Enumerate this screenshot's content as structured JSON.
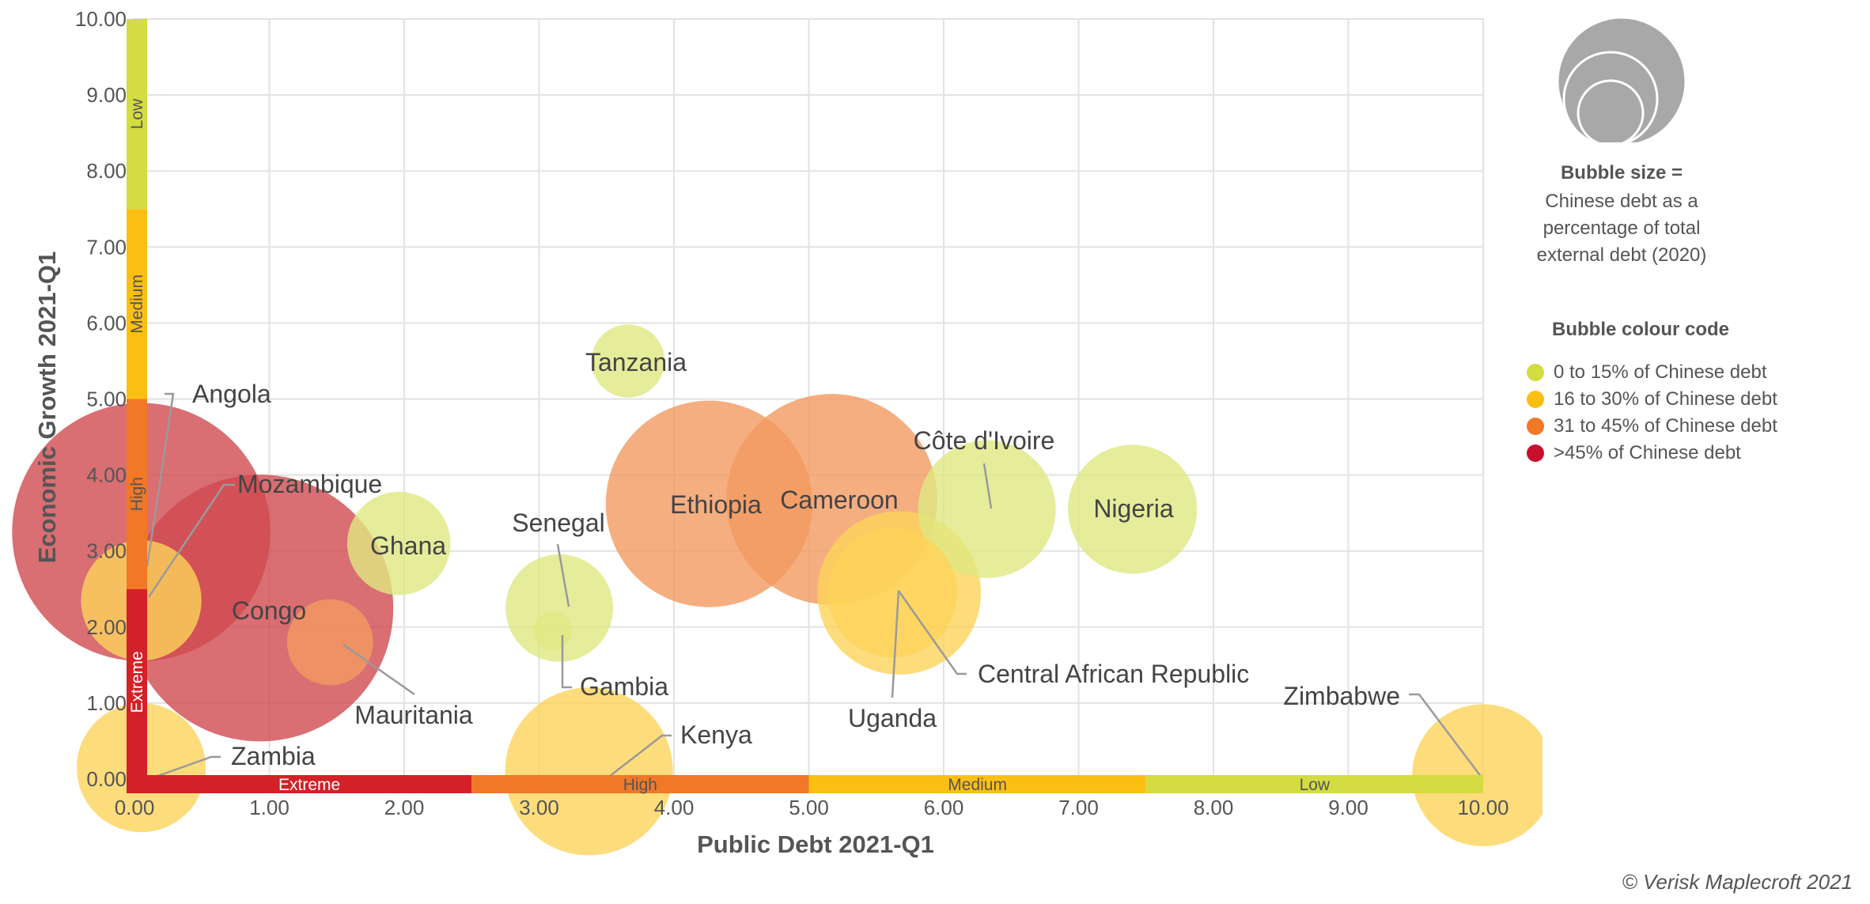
{
  "chart_data": {
    "type": "scatter",
    "subtype": "bubble",
    "xlabel": "Public Debt 2021-Q1",
    "ylabel": "Economic Growth 2021-Q1",
    "xlim": [
      0,
      10
    ],
    "ylim": [
      0,
      10
    ],
    "x_ticks": [
      "0.00",
      "1.00",
      "2.00",
      "3.00",
      "4.00",
      "5.00",
      "6.00",
      "7.00",
      "8.00",
      "9.00",
      "10.00"
    ],
    "y_ticks": [
      "0.00",
      "1.00",
      "2.00",
      "3.00",
      "4.00",
      "5.00",
      "6.00",
      "7.00",
      "8.00",
      "9.00",
      "10.00"
    ],
    "grid": true,
    "x_bands": [
      {
        "label": "Extreme",
        "from": 0,
        "to": 2.5,
        "color": "#d42027"
      },
      {
        "label": "High",
        "from": 2.5,
        "to": 5.0,
        "color": "#f07826"
      },
      {
        "label": "Medium",
        "from": 5.0,
        "to": 7.5,
        "color": "#fbbf13"
      },
      {
        "label": "Low",
        "from": 7.5,
        "to": 10.0,
        "color": "#d3dc41"
      }
    ],
    "y_bands": [
      {
        "label": "Extreme",
        "from": 0,
        "to": 2.5,
        "color": "#d42027"
      },
      {
        "label": "High",
        "from": 2.5,
        "to": 5.0,
        "color": "#f07826"
      },
      {
        "label": "Medium",
        "from": 5.0,
        "to": 7.5,
        "color": "#fbbf13"
      },
      {
        "label": "Low",
        "from": 7.5,
        "to": 10.0,
        "color": "#d3dc41"
      }
    ],
    "points": [
      {
        "name": "Angola",
        "x": 0.05,
        "y": 3.25,
        "size": 60,
        "category": ">45% of Chinese debt"
      },
      {
        "name": "Mozambique",
        "x": 0.05,
        "y": 2.35,
        "size": 28,
        "category": "16 to 30% of Chinese debt"
      },
      {
        "name": "Congo",
        "x": 0.93,
        "y": 2.25,
        "size": 62,
        "category": ">45% of Chinese debt"
      },
      {
        "name": "Ghana",
        "x": 1.96,
        "y": 3.1,
        "size": 24,
        "category": "0 to 15% of Chinese debt"
      },
      {
        "name": "Mauritania",
        "x": 1.45,
        "y": 1.8,
        "size": 20,
        "category": "31 to 45% of Chinese debt"
      },
      {
        "name": "Zambia",
        "x": 0.05,
        "y": 0.15,
        "size": 30,
        "category": "16 to 30% of Chinese debt"
      },
      {
        "name": "Senegal",
        "x": 3.15,
        "y": 2.25,
        "size": 25,
        "category": "0 to 15% of Chinese debt"
      },
      {
        "name": "Gambia",
        "x": 3.1,
        "y": 1.95,
        "size": 9,
        "category": "0 to 15% of Chinese debt"
      },
      {
        "name": "Tanzania",
        "x": 3.66,
        "y": 5.5,
        "size": 17,
        "category": "0 to 15% of Chinese debt"
      },
      {
        "name": "Kenya",
        "x": 3.37,
        "y": 0.1,
        "size": 39,
        "category": "16 to 30% of Chinese debt"
      },
      {
        "name": "Ethiopia",
        "x": 4.26,
        "y": 3.62,
        "size": 48,
        "category": "31 to 45% of Chinese debt"
      },
      {
        "name": "Cameroon",
        "x": 5.17,
        "y": 3.68,
        "size": 49,
        "category": "31 to 45% of Chinese debt"
      },
      {
        "name": "Central African Republic",
        "x": 5.67,
        "y": 2.45,
        "size": 38,
        "category": "16 to 30% of Chinese debt"
      },
      {
        "name": "Uganda",
        "x": 5.62,
        "y": 2.45,
        "size": 30,
        "category": "16 to 30% of Chinese debt"
      },
      {
        "name": "Côte d'Ivoire",
        "x": 6.32,
        "y": 3.55,
        "size": 32,
        "category": "0 to 15% of Chinese debt"
      },
      {
        "name": "Nigeria",
        "x": 7.4,
        "y": 3.55,
        "size": 30,
        "category": "0 to 15% of Chinese debt"
      },
      {
        "name": "Zimbabwe",
        "x": 10.0,
        "y": 0.05,
        "size": 33,
        "category": "16 to 30% of Chinese debt"
      }
    ]
  },
  "legend": {
    "size_title": "Bubble size =",
    "size_desc_lines": [
      "Chinese debt as a",
      "percentage of total",
      "external debt (2020)"
    ],
    "colour_title": "Bubble colour code",
    "items": [
      {
        "label": "0 to 15% of Chinese debt",
        "color": "#d3dc41"
      },
      {
        "label": "16 to 30% of Chinese debt",
        "color": "#fbbf13"
      },
      {
        "label": "31 to 45% of Chinese debt",
        "color": "#f07826"
      },
      {
        "label": ">45% of Chinese debt",
        "color": "#c8102e"
      }
    ]
  },
  "colors": {
    "0 to 15% of Chinese debt": "#dfe882",
    "16 to 30% of Chinese debt": "#fcd35a",
    "31 to 45% of Chinese debt": "#f39a60",
    ">45% of Chinese debt": "#cf4a50"
  },
  "copyright": "© Verisk Maplecroft 2021"
}
